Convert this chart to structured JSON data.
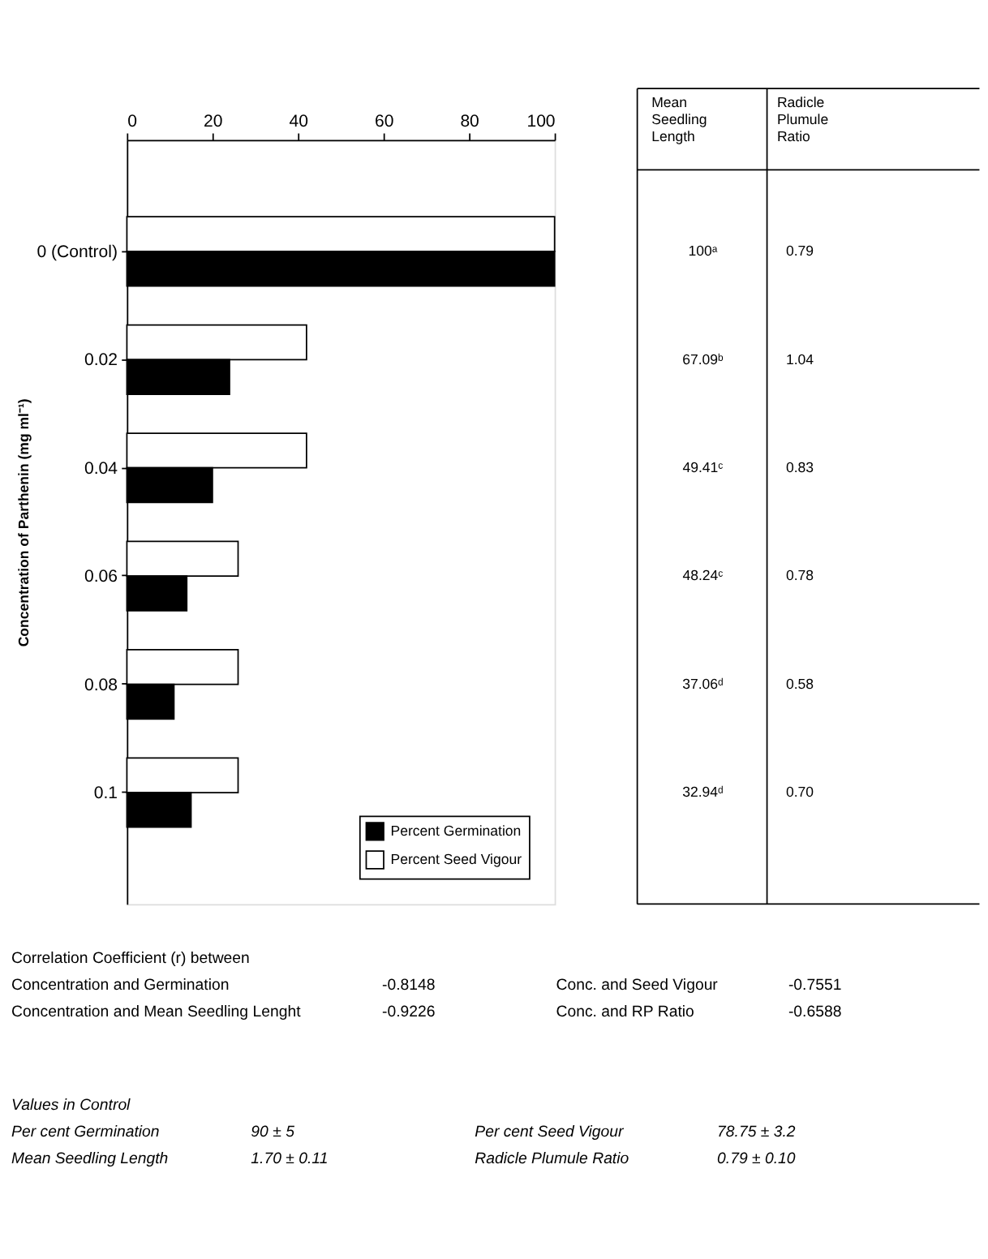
{
  "chart_data": {
    "type": "bar",
    "orientation": "horizontal",
    "categories": [
      "0 (Control)",
      "0.02",
      "0.04",
      "0.06",
      "0.08",
      "0.1"
    ],
    "series": [
      {
        "name": "Percent Seed Vigour",
        "color": "#ffffff",
        "values": [
          100,
          42,
          42,
          26,
          26,
          26
        ]
      },
      {
        "name": "Percent Germination",
        "color": "#000000",
        "values": [
          100,
          24,
          20,
          14,
          11,
          15
        ]
      }
    ],
    "xlim": [
      0,
      100
    ],
    "xticks": [
      0,
      20,
      40,
      60,
      80,
      100
    ],
    "ylabel": "Concentration of Parthenin (mg ml⁻¹)",
    "legend": "bottom right",
    "grid": false,
    "annotations": [
      "Mean Seedling Length",
      "Radicle Plumule Ratio",
      "100ᵃ",
      "0.79",
      "67.09ᵇ",
      "1.04",
      "49.41ᶜ",
      "0.83",
      "48.24ᶜ",
      "0.78",
      "37.06ᵈ",
      "0.58",
      "32.94ᵈ",
      "0.70",
      "Correlation Coefficient (r) between",
      "Concentration and Germination",
      "-0.8148",
      "Conc. and Seed Vigour",
      "-0.7551",
      "Concentration and Mean Seedling Lenght",
      "-0.9226",
      "Conc. and RP Ratio",
      "-0.6588",
      "Values in Control",
      "Per cent Germination",
      "90 ± 5",
      "Per cent Seed Vigour",
      "78.75 ± 3.2",
      "Mean Seedling Length",
      "1.70 ± 0.11",
      "Radicle Plumule Ratio",
      "0.79 ± 0.10"
    ]
  }
}
